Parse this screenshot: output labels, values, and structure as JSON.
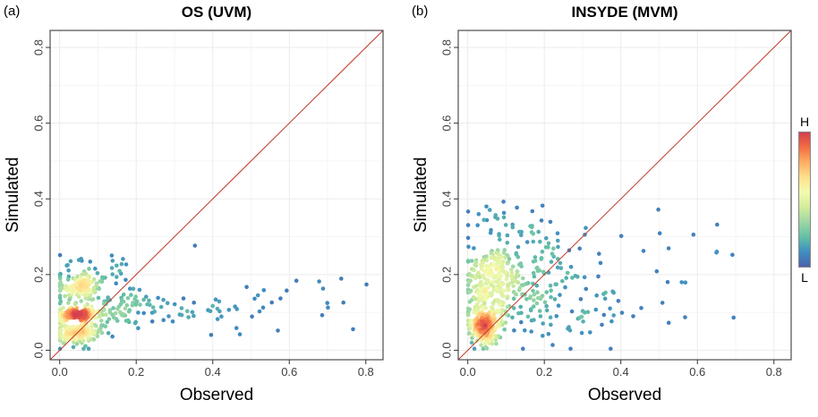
{
  "figure": {
    "panel_a": {
      "letter": "(a)",
      "title": "OS (UVM)",
      "xlabel": "Observed",
      "ylabel": "Simulated"
    },
    "panel_b": {
      "letter": "(b)",
      "title": "INSYDE (MVM)",
      "xlabel": "Observed",
      "ylabel": "Simulated"
    },
    "colorbar": {
      "high": "H",
      "low": "L"
    }
  },
  "style": {
    "colormap": [
      "#4C61A9",
      "#3F8FC2",
      "#64C0A5",
      "#9DD7A4",
      "#D3EC9C",
      "#F3FAAD",
      "#FEE08B",
      "#FDAE61",
      "#F46D43",
      "#D53E4F"
    ],
    "identity_line_color": "#C0392B",
    "grid_major": "#EBEBEB",
    "grid_minor": "#F5F5F5",
    "panel_border": "#4D4D4D",
    "tick_color": "#333333",
    "tick_label_color": "#404040",
    "point_radius": 2.3
  },
  "chart_data": [
    {
      "type": "scatter",
      "panel": "a",
      "title": "OS (UVM)",
      "xlabel": "Observed",
      "ylabel": "Simulated",
      "xlim": [
        -0.025,
        0.845
      ],
      "ylim": [
        -0.025,
        0.845
      ],
      "ticks": [
        0.0,
        0.2,
        0.4,
        0.6,
        0.8
      ],
      "tick_labels": [
        "0.0",
        "0.2",
        "0.4",
        "0.6",
        "0.8"
      ],
      "grid": true,
      "identity_line": true,
      "color_encodes": "local point density, L (low) to H (high)",
      "seed": 101,
      "density_radius": 0.022,
      "clusters": [
        {
          "x": 0.05,
          "y": 0.095,
          "sx": 0.028,
          "sy": 0.007,
          "n": 160
        },
        {
          "x": 0.05,
          "y": 0.045,
          "sx": 0.032,
          "sy": 0.018,
          "n": 140
        },
        {
          "x": 0.055,
          "y": 0.165,
          "sx": 0.028,
          "sy": 0.018,
          "n": 120
        },
        {
          "x": 0.13,
          "y": 0.105,
          "sx": 0.07,
          "sy": 0.03,
          "n": 90
        },
        {
          "x": 0.1,
          "y": 0.2,
          "sx": 0.06,
          "sy": 0.025,
          "n": 50
        },
        {
          "x": 0.35,
          "y": 0.105,
          "sx": 0.14,
          "sy": 0.022,
          "n": 45
        },
        {
          "x": 0.58,
          "y": 0.14,
          "sx": 0.12,
          "sy": 0.05,
          "n": 18
        }
      ]
    },
    {
      "type": "scatter",
      "panel": "b",
      "title": "INSYDE (MVM)",
      "xlabel": "Observed",
      "ylabel": "Simulated",
      "xlim": [
        -0.025,
        0.845
      ],
      "ylim": [
        -0.025,
        0.845
      ],
      "ticks": [
        0.0,
        0.2,
        0.4,
        0.6,
        0.8
      ],
      "tick_labels": [
        "0.0",
        "0.2",
        "0.4",
        "0.6",
        "0.8"
      ],
      "grid": true,
      "identity_line": true,
      "color_encodes": "local point density, L (low) to H (high)",
      "seed": 202,
      "density_radius": 0.022,
      "clusters": [
        {
          "x": 0.045,
          "y": 0.065,
          "sx": 0.022,
          "sy": 0.028,
          "n": 190
        },
        {
          "x": 0.065,
          "y": 0.215,
          "sx": 0.035,
          "sy": 0.03,
          "n": 130
        },
        {
          "x": 0.08,
          "y": 0.14,
          "sx": 0.045,
          "sy": 0.03,
          "n": 90
        },
        {
          "x": 0.16,
          "y": 0.17,
          "sx": 0.09,
          "sy": 0.07,
          "n": 120
        },
        {
          "x": 0.12,
          "y": 0.33,
          "sx": 0.09,
          "sy": 0.05,
          "n": 45
        },
        {
          "x": 0.42,
          "y": 0.22,
          "sx": 0.16,
          "sy": 0.09,
          "n": 40
        },
        {
          "x": 0.3,
          "y": 0.09,
          "sx": 0.12,
          "sy": 0.04,
          "n": 30
        }
      ]
    }
  ]
}
